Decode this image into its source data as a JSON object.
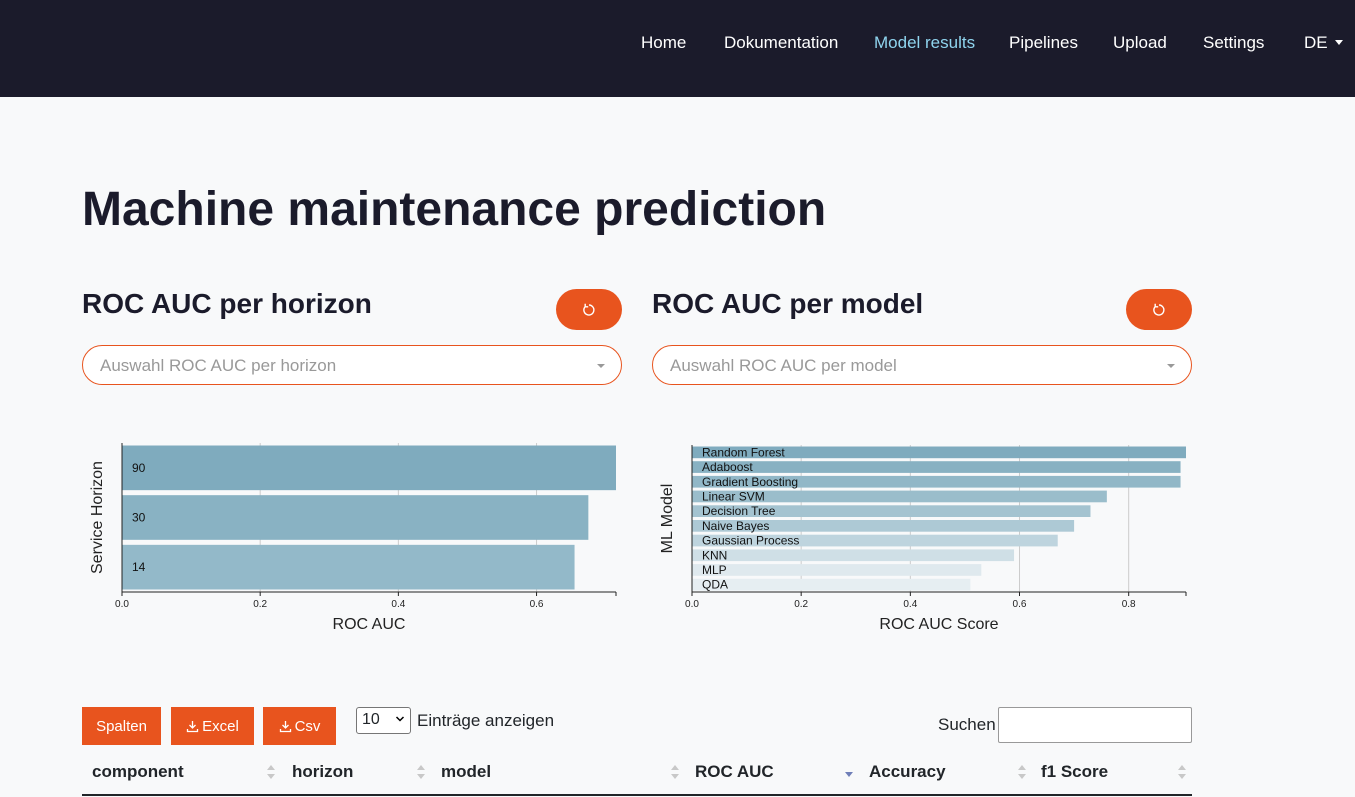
{
  "nav": {
    "items": [
      "Home",
      "Dokumentation",
      "Model results",
      "Pipelines",
      "Upload",
      "Settings"
    ],
    "active": "Model results",
    "language": "DE"
  },
  "page": {
    "title": "Machine maintenance prediction"
  },
  "panels": {
    "horizon": {
      "title": "ROC AUC per horizon",
      "placeholder": "Auswahl ROC AUC per horizon"
    },
    "model": {
      "title": "ROC AUC per model",
      "placeholder": "Auswahl ROC AUC per model"
    }
  },
  "chart_data": [
    {
      "type": "bar",
      "orientation": "horizontal",
      "categories": [
        "90",
        "30",
        "14"
      ],
      "values": [
        0.715,
        0.675,
        0.655
      ],
      "xlabel": "ROC AUC",
      "ylabel": "Service Horizon",
      "xticks": [
        "0.0",
        "0.2",
        "0.4",
        "0.6"
      ],
      "xlim": [
        0,
        0.715
      ],
      "colors": [
        "#7fabbe",
        "#89b2c3",
        "#93b9c9"
      ],
      "grid": true
    },
    {
      "type": "bar",
      "orientation": "horizontal",
      "categories": [
        "Random Forest",
        "Adaboost",
        "Gradient Boosting",
        "Linear SVM",
        "Decision Tree",
        "Naive Bayes",
        "Gaussian Process",
        "KNN",
        "MLP",
        "QDA"
      ],
      "values": [
        0.905,
        0.895,
        0.895,
        0.76,
        0.73,
        0.7,
        0.67,
        0.59,
        0.53,
        0.51
      ],
      "xlabel": "ROC AUC Score",
      "ylabel": "ML Model",
      "xticks": [
        "0.0",
        "0.2",
        "0.4",
        "0.6",
        "0.8"
      ],
      "xlim": [
        0,
        0.905
      ],
      "colors": [
        "#7fabbe",
        "#88b1c2",
        "#91b7c7",
        "#9abdcb",
        "#a4c3d0",
        "#adc9d5",
        "#bed4de",
        "#cfdfe6",
        "#dfe9ee",
        "#e6eef2"
      ],
      "grid": true
    }
  ],
  "table_controls": {
    "columns_button": "Spalten",
    "excel_button": "Excel",
    "csv_button": "Csv",
    "page_length": "10",
    "page_length_label": "Einträge anzeigen",
    "search_label": "Suchen"
  },
  "table": {
    "columns": [
      "component",
      "horizon",
      "model",
      "ROC AUC",
      "Accuracy",
      "f1 Score"
    ],
    "sorted_column": "ROC AUC",
    "sort_direction": "desc"
  },
  "colors": {
    "accent": "#e8541e",
    "nav_bg": "#1b1b2b",
    "nav_active": "#8fd4ee"
  }
}
